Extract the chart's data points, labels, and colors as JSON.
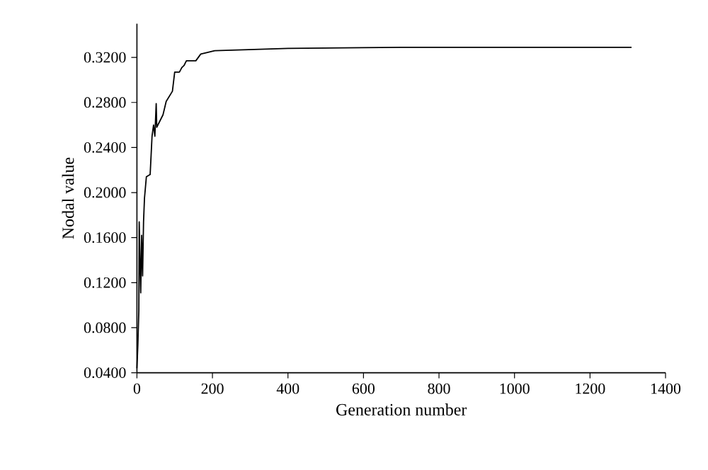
{
  "chart_data": {
    "type": "line",
    "xlabel": "Generation number",
    "ylabel": "Nodal value",
    "x": [
      0,
      2.5,
      5,
      6,
      10,
      12.5,
      15,
      17.5,
      20,
      25,
      35,
      40,
      44,
      47.5,
      51,
      52.5,
      69,
      77.5,
      94,
      100,
      112.5,
      119,
      125,
      131,
      156,
      169,
      206,
      400,
      700,
      1000,
      1310
    ],
    "series": [
      {
        "color": "#000000",
        "values": [
          0.044,
          0.065,
          0.095,
          0.174,
          0.111,
          0.162,
          0.126,
          0.174,
          0.195,
          0.214,
          0.216,
          0.25,
          0.26,
          0.25,
          0.279,
          0.258,
          0.269,
          0.281,
          0.29,
          0.307,
          0.307,
          0.311,
          0.313,
          0.317,
          0.317,
          0.323,
          0.326,
          0.328,
          0.329,
          0.329,
          0.329
        ]
      }
    ],
    "xlim": [
      0,
      1400
    ],
    "xticks": [
      0,
      200,
      400,
      600,
      800,
      1000,
      1200,
      1400
    ],
    "ylim": [
      0.04,
      0.35
    ],
    "yticks": [
      {
        "value": 0.04,
        "label": "0.0400"
      },
      {
        "value": 0.08,
        "label": "0.0800"
      },
      {
        "value": 0.12,
        "label": "0.1200"
      },
      {
        "value": 0.16,
        "label": "0.1600"
      },
      {
        "value": 0.2,
        "label": "0.2000"
      },
      {
        "value": 0.24,
        "label": "0.2400"
      },
      {
        "value": 0.28,
        "label": "0.2800"
      },
      {
        "value": 0.32,
        "label": "0.3200"
      }
    ],
    "grid": false,
    "marker": "none",
    "line_style": "solid"
  }
}
